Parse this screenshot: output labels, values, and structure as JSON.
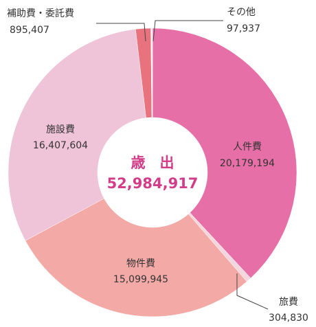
{
  "chart_data": {
    "type": "donut",
    "center_title": "歳　出",
    "total": {
      "value": 52984917,
      "label": "52,984,917"
    },
    "categories": [
      "人件費",
      "旅費",
      "物件費",
      "施設費",
      "補助費・委託費",
      "その他"
    ],
    "values": [
      20179194,
      304830,
      15099945,
      16407604,
      895407,
      97937
    ],
    "value_labels": [
      "20,179,194",
      "304,830",
      "15,099,945",
      "16,407,604",
      "895,407",
      "97,937"
    ],
    "colors": [
      "#e56fa6",
      "#f4d6df",
      "#f3aaa6",
      "#efc3d8",
      "#e8737f",
      "#f9eef2"
    ]
  }
}
